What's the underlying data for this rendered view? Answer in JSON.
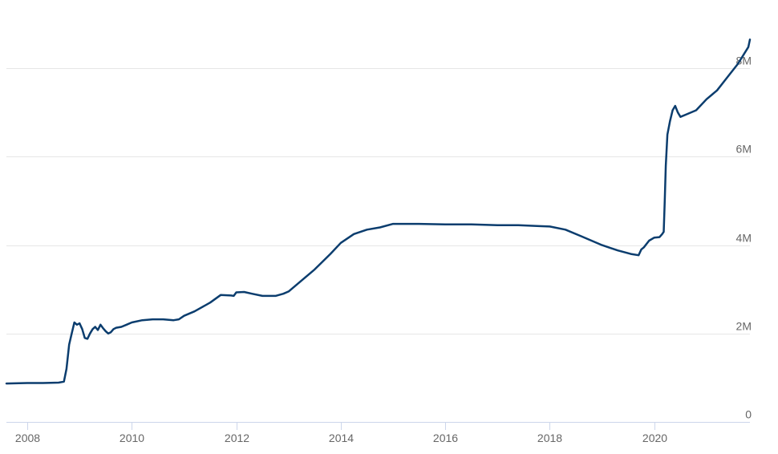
{
  "chart_data": {
    "type": "line",
    "title": "",
    "xlabel": "",
    "ylabel": "",
    "xlim": [
      2007.6,
      2021.83
    ],
    "ylim": [
      0,
      9000000
    ],
    "x_ticks": [
      {
        "value": 2008,
        "label": "2008"
      },
      {
        "value": 2010,
        "label": "2010"
      },
      {
        "value": 2012,
        "label": "2012"
      },
      {
        "value": 2014,
        "label": "2014"
      },
      {
        "value": 2016,
        "label": "2016"
      },
      {
        "value": 2018,
        "label": "2018"
      },
      {
        "value": 2020,
        "label": "2020"
      }
    ],
    "y_ticks": [
      {
        "value": 0,
        "label": "0"
      },
      {
        "value": 2000000,
        "label": "2M"
      },
      {
        "value": 4000000,
        "label": "4M"
      },
      {
        "value": 6000000,
        "label": "6M"
      },
      {
        "value": 8000000,
        "label": "8M"
      }
    ],
    "grid": true,
    "y_axis_side": "right",
    "line_color": "#0b3d6e",
    "series": [
      {
        "x": [
          2007.6,
          2008.0,
          2008.3,
          2008.6,
          2008.7,
          2008.75,
          2008.8,
          2008.85,
          2008.9,
          2008.95,
          2009.0,
          2009.05,
          2009.1,
          2009.15,
          2009.2,
          2009.25,
          2009.3,
          2009.35,
          2009.4,
          2009.45,
          2009.5,
          2009.55,
          2009.6,
          2009.65,
          2009.7,
          2009.8,
          2009.9,
          2010.0,
          2010.2,
          2010.4,
          2010.6,
          2010.8,
          2010.9,
          2011.0,
          2011.2,
          2011.5,
          2011.7,
          2011.9,
          2011.95,
          2012.0,
          2012.15,
          2012.3,
          2012.5,
          2012.75,
          2012.9,
          2013.0,
          2013.2,
          2013.5,
          2013.8,
          2014.0,
          2014.25,
          2014.5,
          2014.75,
          2015.0,
          2015.5,
          2016.0,
          2016.5,
          2017.0,
          2017.4,
          2017.8,
          2018.0,
          2018.3,
          2018.6,
          2019.0,
          2019.3,
          2019.55,
          2019.7,
          2019.75,
          2019.8,
          2019.9,
          2020.0,
          2020.1,
          2020.15,
          2020.18,
          2020.2,
          2020.22,
          2020.25,
          2020.3,
          2020.35,
          2020.4,
          2020.45,
          2020.5,
          2020.6,
          2020.8,
          2021.0,
          2021.2,
          2021.4,
          2021.6,
          2021.8,
          2021.83
        ],
        "y": [
          870000,
          880000,
          880000,
          890000,
          910000,
          1200000,
          1750000,
          2000000,
          2250000,
          2200000,
          2230000,
          2100000,
          1900000,
          1880000,
          2000000,
          2100000,
          2150000,
          2080000,
          2200000,
          2120000,
          2050000,
          2000000,
          2030000,
          2100000,
          2130000,
          2150000,
          2200000,
          2250000,
          2300000,
          2320000,
          2320000,
          2300000,
          2320000,
          2400000,
          2500000,
          2700000,
          2870000,
          2860000,
          2850000,
          2930000,
          2940000,
          2900000,
          2850000,
          2850000,
          2900000,
          2950000,
          3150000,
          3450000,
          3800000,
          4050000,
          4250000,
          4350000,
          4400000,
          4480000,
          4480000,
          4470000,
          4470000,
          4450000,
          4450000,
          4430000,
          4420000,
          4350000,
          4200000,
          4000000,
          3880000,
          3800000,
          3770000,
          3900000,
          3950000,
          4100000,
          4170000,
          4180000,
          4250000,
          4300000,
          5000000,
          5800000,
          6500000,
          6800000,
          7050000,
          7150000,
          7000000,
          6900000,
          6950000,
          7050000,
          7300000,
          7500000,
          7800000,
          8100000,
          8480000,
          8650000
        ]
      }
    ]
  }
}
